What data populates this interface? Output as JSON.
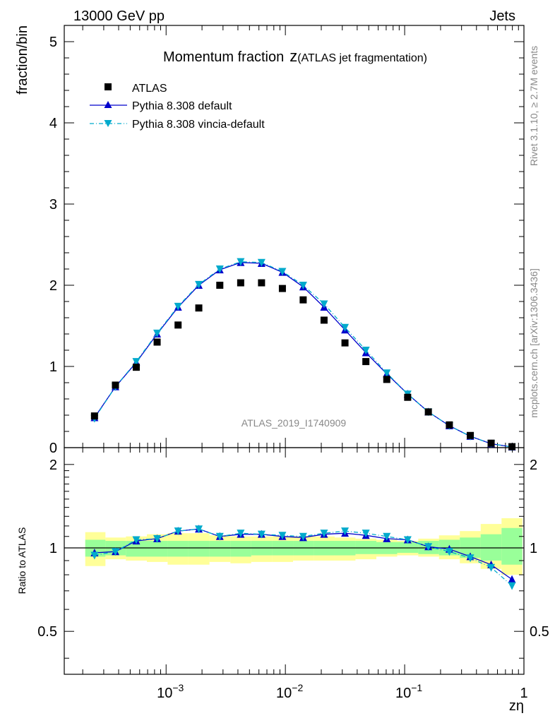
{
  "header": {
    "left": "13000 GeV pp",
    "right": "Jets",
    "side_label_top": "Rivet 3.1.10, ≥ 2.7M events",
    "side_label_bottom": "mcplots.cern.ch [arXiv:1306.3436]",
    "analysis_tag": "ATLAS_2019_I1740909"
  },
  "chart_data": [
    {
      "type": "scatter",
      "title": "Momentum fraction",
      "title_math": "z",
      "title_suffix": "(ATLAS jet fragmentation)",
      "ylabel": "fraction/bin",
      "xscale": "log",
      "xlim": [
        0.00014,
        1.0
      ],
      "ylim": [
        0,
        5.2
      ],
      "yticks": [
        0,
        1,
        2,
        3,
        4,
        5
      ],
      "legend_position": "top-left",
      "x": [
        0.000251,
        0.000376,
        0.000562,
        0.000841,
        0.00126,
        0.00188,
        0.00282,
        0.00422,
        0.00631,
        0.00944,
        0.0141,
        0.0211,
        0.0316,
        0.0473,
        0.0708,
        0.106,
        0.158,
        0.237,
        0.355,
        0.531,
        0.794
      ],
      "series": [
        {
          "name": "ATLAS",
          "color": "#000000",
          "marker": "square",
          "values": [
            0.39,
            0.77,
            0.99,
            1.3,
            1.51,
            1.72,
            2.0,
            2.03,
            2.03,
            1.96,
            1.82,
            1.57,
            1.29,
            1.06,
            0.84,
            0.62,
            0.44,
            0.28,
            0.15,
            0.055,
            0.012
          ]
        },
        {
          "name": "Pythia 8.308 default",
          "color": "#0000cc",
          "marker": "triangle-up",
          "line": "solid",
          "values": [
            0.37,
            0.75,
            1.05,
            1.4,
            1.73,
            2.0,
            2.19,
            2.28,
            2.27,
            2.16,
            1.98,
            1.73,
            1.45,
            1.17,
            0.91,
            0.66,
            0.44,
            0.27,
            0.14,
            0.048,
            0.009
          ]
        },
        {
          "name": "Pythia 8.308 vincia-default",
          "color": "#00aacc",
          "marker": "triangle-down",
          "line": "dashdot",
          "values": [
            0.36,
            0.75,
            1.06,
            1.41,
            1.74,
            2.01,
            2.2,
            2.29,
            2.28,
            2.17,
            2.0,
            1.77,
            1.48,
            1.2,
            0.92,
            0.66,
            0.44,
            0.27,
            0.14,
            0.047,
            0.009
          ]
        }
      ]
    },
    {
      "type": "scatter",
      "ylabel": "Ratio to ATLAS",
      "xlabel": "zη",
      "xscale": "log",
      "xlim": [
        0.00014,
        1.0
      ],
      "ylim": [
        0.35,
        2.3
      ],
      "yticks": [
        0.5,
        1,
        2
      ],
      "ytick_labels": [
        "0.5",
        "1",
        "2"
      ],
      "xticks": [
        0.001,
        0.01,
        0.1,
        1
      ],
      "xtick_labels": [
        "10",
        "10",
        "10",
        "1"
      ],
      "xtick_exponents": [
        "−3",
        "−2",
        "−1",
        ""
      ],
      "reference_line": 1,
      "x": [
        0.000251,
        0.000376,
        0.000562,
        0.000841,
        0.00126,
        0.00188,
        0.00282,
        0.00422,
        0.00631,
        0.00944,
        0.0141,
        0.0211,
        0.0316,
        0.0473,
        0.0708,
        0.106,
        0.158,
        0.237,
        0.355,
        0.531,
        0.794
      ],
      "bands": {
        "bin_edges": [
          0.00021,
          0.00031,
          0.00046,
          0.00069,
          0.00103,
          0.00154,
          0.00231,
          0.00346,
          0.00517,
          0.00774,
          0.0116,
          0.0173,
          0.0259,
          0.0387,
          0.0579,
          0.0866,
          0.13,
          0.194,
          0.29,
          0.434,
          0.649,
          0.97
        ],
        "green_lo": [
          0.93,
          0.94,
          0.93,
          0.93,
          0.93,
          0.93,
          0.93,
          0.93,
          0.94,
          0.94,
          0.94,
          0.94,
          0.94,
          0.95,
          0.95,
          0.96,
          0.95,
          0.94,
          0.92,
          0.9,
          0.87
        ],
        "green_hi": [
          1.07,
          1.06,
          1.06,
          1.06,
          1.06,
          1.06,
          1.06,
          1.06,
          1.06,
          1.06,
          1.06,
          1.06,
          1.06,
          1.06,
          1.05,
          1.05,
          1.06,
          1.07,
          1.09,
          1.12,
          1.18
        ],
        "yellow_lo": [
          0.86,
          0.91,
          0.9,
          0.89,
          0.87,
          0.87,
          0.89,
          0.88,
          0.89,
          0.89,
          0.9,
          0.9,
          0.9,
          0.91,
          0.93,
          0.94,
          0.93,
          0.91,
          0.88,
          0.84,
          0.8
        ],
        "yellow_hi": [
          1.14,
          1.09,
          1.1,
          1.12,
          1.13,
          1.13,
          1.11,
          1.1,
          1.1,
          1.1,
          1.1,
          1.1,
          1.09,
          1.08,
          1.07,
          1.06,
          1.08,
          1.11,
          1.15,
          1.22,
          1.28
        ]
      },
      "series": [
        {
          "name": "Pythia 8.308 default",
          "color": "#0000cc",
          "marker": "triangle-up",
          "line": "solid",
          "values": [
            0.96,
            0.97,
            1.06,
            1.08,
            1.15,
            1.17,
            1.1,
            1.12,
            1.12,
            1.1,
            1.09,
            1.12,
            1.13,
            1.11,
            1.08,
            1.07,
            1.01,
            0.99,
            0.93,
            0.87,
            0.77
          ]
        },
        {
          "name": "Pythia 8.308 vincia-default",
          "color": "#00aacc",
          "marker": "triangle-down",
          "line": "dashdot",
          "values": [
            0.94,
            0.97,
            1.07,
            1.08,
            1.15,
            1.17,
            1.1,
            1.13,
            1.12,
            1.11,
            1.1,
            1.13,
            1.15,
            1.13,
            1.1,
            1.07,
            1.01,
            0.97,
            0.92,
            0.85,
            0.73
          ]
        }
      ]
    }
  ]
}
